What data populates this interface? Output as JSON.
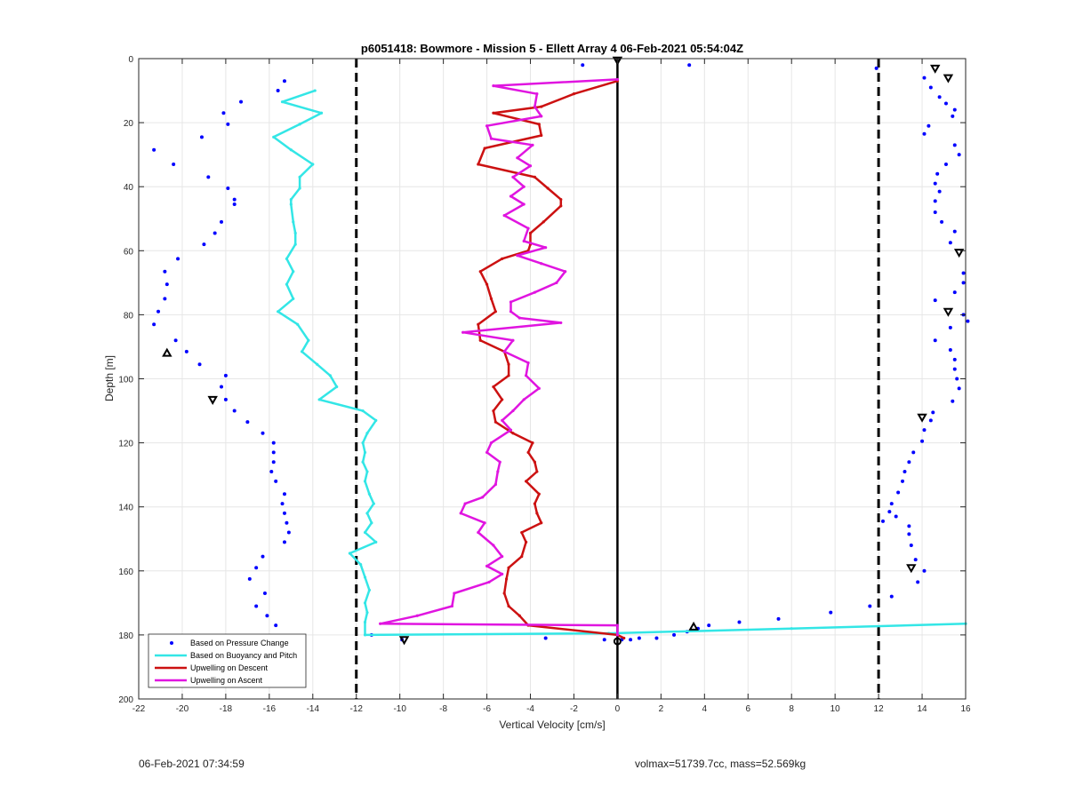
{
  "chart_data": {
    "type": "line",
    "title": "p6051418: Bowmore - Mission 5 - Ellett Array 4 06-Feb-2021 05:54:04Z",
    "xlabel": "Vertical Velocity [cm/s]",
    "ylabel": "Depth [m]",
    "xlim": [
      -22,
      16
    ],
    "ylim": [
      0,
      200
    ],
    "y_reversed": true,
    "grid": true,
    "legend_position": "bottom-left",
    "xticks": [
      -22,
      -20,
      -18,
      -16,
      -14,
      -12,
      -10,
      -8,
      -6,
      -4,
      -2,
      0,
      2,
      4,
      6,
      8,
      10,
      12,
      14,
      16
    ],
    "yticks": [
      0,
      20,
      40,
      60,
      80,
      100,
      120,
      140,
      160,
      180,
      200
    ],
    "reference_lines": [
      {
        "name": "zero",
        "x": 0,
        "style": "solid",
        "color": "#000000"
      },
      {
        "name": "lower-threshold",
        "x": -12,
        "style": "dashed",
        "color": "#000000"
      },
      {
        "name": "upper-threshold",
        "x": 12,
        "style": "dashed",
        "color": "#000000"
      }
    ],
    "series": [
      {
        "name": "Based on Pressure Change",
        "kind": "scatter",
        "color": "#0000ff",
        "points": [
          [
            -15.3,
            7
          ],
          [
            -15.6,
            10
          ],
          [
            -17.3,
            13.5
          ],
          [
            -18.1,
            17
          ],
          [
            -17.9,
            20.5
          ],
          [
            -19.1,
            24.5
          ],
          [
            -21.3,
            28.5
          ],
          [
            -20.4,
            33
          ],
          [
            -18.8,
            37
          ],
          [
            -17.9,
            40.5
          ],
          [
            -17.6,
            44
          ],
          [
            -17.6,
            45.5
          ],
          [
            -18.2,
            51
          ],
          [
            -18.5,
            54.5
          ],
          [
            -19,
            58
          ],
          [
            -20.2,
            62.5
          ],
          [
            -20.8,
            66.5
          ],
          [
            -20.7,
            70.5
          ],
          [
            -20.8,
            75
          ],
          [
            -21.1,
            79
          ],
          [
            -21.3,
            83
          ],
          [
            -20.3,
            88
          ],
          [
            -19.8,
            91.5
          ],
          [
            -19.2,
            95.5
          ],
          [
            -18,
            99
          ],
          [
            -18.2,
            102.5
          ],
          [
            -18,
            106.5
          ],
          [
            -17.6,
            110
          ],
          [
            -17,
            113.5
          ],
          [
            -16.3,
            117
          ],
          [
            -15.8,
            120
          ],
          [
            -15.8,
            123
          ],
          [
            -15.8,
            126
          ],
          [
            -15.9,
            129
          ],
          [
            -15.7,
            132
          ],
          [
            -15.3,
            136
          ],
          [
            -15.4,
            139
          ],
          [
            -15.3,
            142
          ],
          [
            -15.2,
            145
          ],
          [
            -15.1,
            148
          ],
          [
            -15.3,
            151
          ],
          [
            -16.3,
            155.5
          ],
          [
            -16.6,
            159
          ],
          [
            -16.9,
            162.5
          ],
          [
            -16.2,
            167
          ],
          [
            -16.6,
            171
          ],
          [
            -16.1,
            174
          ],
          [
            -15.7,
            177
          ],
          [
            -1.6,
            2
          ],
          [
            3.3,
            2
          ],
          [
            -11.3,
            180
          ],
          [
            -9.9,
            181.5
          ],
          [
            -3.3,
            181
          ],
          [
            -0.6,
            181.5
          ],
          [
            0.2,
            181.5
          ],
          [
            0.6,
            181.5
          ],
          [
            1,
            181
          ],
          [
            1.8,
            181
          ],
          [
            2.6,
            180
          ],
          [
            3.2,
            179
          ],
          [
            3.7,
            178
          ],
          [
            4.2,
            177
          ],
          [
            5.6,
            176
          ],
          [
            7.4,
            175
          ],
          [
            9.8,
            173
          ],
          [
            11.6,
            171
          ],
          [
            12.6,
            168
          ],
          [
            13.8,
            163.5
          ],
          [
            14.1,
            160
          ],
          [
            13.7,
            156.5
          ],
          [
            13.5,
            152
          ],
          [
            13.4,
            148.5
          ],
          [
            13.4,
            146
          ],
          [
            12.8,
            143
          ],
          [
            12.5,
            141.5
          ],
          [
            12.2,
            144.5
          ],
          [
            11.9,
            3
          ],
          [
            14.1,
            6
          ],
          [
            14.4,
            9
          ],
          [
            14.8,
            12
          ],
          [
            15.1,
            14
          ],
          [
            15.5,
            16
          ],
          [
            15.4,
            18
          ],
          [
            14.3,
            21
          ],
          [
            14.1,
            23.5
          ],
          [
            15.5,
            27
          ],
          [
            15.7,
            30
          ],
          [
            15.1,
            33
          ],
          [
            14.7,
            36
          ],
          [
            14.6,
            39
          ],
          [
            14.8,
            41.5
          ],
          [
            14.6,
            44.5
          ],
          [
            14.6,
            48
          ],
          [
            14.9,
            51
          ],
          [
            15.5,
            54
          ],
          [
            15.3,
            57.5
          ],
          [
            15.9,
            67
          ],
          [
            15.9,
            70
          ],
          [
            15.5,
            73
          ],
          [
            14.6,
            75.5
          ],
          [
            15.9,
            80
          ],
          [
            16.1,
            82
          ],
          [
            15.3,
            84
          ],
          [
            14.6,
            88
          ],
          [
            15.3,
            91
          ],
          [
            15.5,
            94
          ],
          [
            15.5,
            97
          ],
          [
            15.6,
            100
          ],
          [
            15.7,
            103
          ],
          [
            15.4,
            107
          ],
          [
            14.5,
            110.5
          ],
          [
            14.4,
            113
          ],
          [
            14.1,
            116
          ],
          [
            14,
            119.5
          ],
          [
            13.6,
            123
          ],
          [
            13.4,
            126
          ],
          [
            13.2,
            129
          ],
          [
            13.1,
            132
          ],
          [
            12.9,
            135.5
          ],
          [
            12.6,
            139
          ]
        ]
      },
      {
        "name": "Based on Buoyancy and Pitch",
        "kind": "line",
        "color": "#33e6e6",
        "points": [
          [
            -13.9,
            10
          ],
          [
            -15.4,
            13.5
          ],
          [
            -13.6,
            17
          ],
          [
            -14.6,
            20.5
          ],
          [
            -15.8,
            24.5
          ],
          [
            -15,
            28.5
          ],
          [
            -14,
            33
          ],
          [
            -14.6,
            37
          ],
          [
            -14.6,
            40.5
          ],
          [
            -15,
            44
          ],
          [
            -15,
            45.5
          ],
          [
            -14.9,
            51
          ],
          [
            -14.8,
            54.5
          ],
          [
            -14.8,
            58
          ],
          [
            -15.2,
            62.5
          ],
          [
            -14.9,
            66.5
          ],
          [
            -15.2,
            70.5
          ],
          [
            -14.9,
            75
          ],
          [
            -15.6,
            79
          ],
          [
            -14.7,
            83
          ],
          [
            -14.2,
            88
          ],
          [
            -14.5,
            91.5
          ],
          [
            -13.8,
            95.5
          ],
          [
            -13.2,
            99
          ],
          [
            -12.9,
            102.5
          ],
          [
            -13.7,
            106.5
          ],
          [
            -11.7,
            110
          ],
          [
            -11.1,
            113
          ],
          [
            -11.5,
            117
          ],
          [
            -11.7,
            120
          ],
          [
            -11.6,
            123
          ],
          [
            -11.7,
            126
          ],
          [
            -11.5,
            129
          ],
          [
            -11.6,
            132
          ],
          [
            -11.4,
            136
          ],
          [
            -11.2,
            139
          ],
          [
            -11.5,
            142
          ],
          [
            -11.3,
            145
          ],
          [
            -11.6,
            148
          ],
          [
            -11.1,
            151
          ],
          [
            -12.3,
            154.5
          ],
          [
            -11.8,
            158
          ],
          [
            -11.6,
            162
          ],
          [
            -11.4,
            166
          ],
          [
            -11.6,
            170
          ],
          [
            -11.5,
            173
          ],
          [
            -11.6,
            176
          ],
          [
            -11.6,
            180
          ],
          [
            -0.4,
            179.5
          ],
          [
            8,
            178
          ],
          [
            16,
            176.5
          ]
        ]
      },
      {
        "name": "Upwelling on Descent",
        "kind": "line",
        "color": "#cc1111",
        "points": [
          [
            0,
            7
          ],
          [
            -2,
            11
          ],
          [
            -3.5,
            15
          ],
          [
            -5.7,
            17
          ],
          [
            -3.6,
            20.5
          ],
          [
            -3.5,
            24
          ],
          [
            -6.1,
            28
          ],
          [
            -6.4,
            33
          ],
          [
            -3.8,
            37
          ],
          [
            -3.2,
            40.5
          ],
          [
            -2.6,
            44
          ],
          [
            -2.6,
            46
          ],
          [
            -3.4,
            51
          ],
          [
            -4,
            54.5
          ],
          [
            -4,
            58
          ],
          [
            -4.1,
            60
          ],
          [
            -5.3,
            62.5
          ],
          [
            -6.3,
            66.5
          ],
          [
            -6,
            70.5
          ],
          [
            -5.8,
            75
          ],
          [
            -5.6,
            79
          ],
          [
            -6.4,
            83
          ],
          [
            -6.3,
            88
          ],
          [
            -5.2,
            91.5
          ],
          [
            -5,
            95.5
          ],
          [
            -5,
            99
          ],
          [
            -5.7,
            102.5
          ],
          [
            -5.3,
            106.5
          ],
          [
            -5.7,
            110
          ],
          [
            -5.6,
            113.5
          ],
          [
            -4.8,
            117
          ],
          [
            -3.9,
            120
          ],
          [
            -4.1,
            123
          ],
          [
            -3.8,
            126
          ],
          [
            -3.7,
            129
          ],
          [
            -4.2,
            132
          ],
          [
            -3.6,
            136
          ],
          [
            -3.8,
            139
          ],
          [
            -3.7,
            142
          ],
          [
            -3.5,
            145
          ],
          [
            -4.4,
            148
          ],
          [
            -4.2,
            151
          ],
          [
            -4.4,
            155.5
          ],
          [
            -5,
            159
          ],
          [
            -5.1,
            162.5
          ],
          [
            -5.2,
            167
          ],
          [
            -5,
            171
          ],
          [
            -4.5,
            174
          ],
          [
            -4.1,
            177
          ],
          [
            0,
            180
          ],
          [
            0.3,
            181
          ]
        ]
      },
      {
        "name": "Upwelling on Ascent",
        "kind": "line",
        "color": "#e015e0",
        "points": [
          [
            0,
            6.5
          ],
          [
            -5.7,
            8.5
          ],
          [
            -3.7,
            11
          ],
          [
            -3.8,
            15
          ],
          [
            -3.5,
            18
          ],
          [
            -6,
            21
          ],
          [
            -5.8,
            25
          ],
          [
            -3.9,
            27
          ],
          [
            -4.6,
            31
          ],
          [
            -4,
            33.5
          ],
          [
            -4.8,
            37
          ],
          [
            -4.3,
            40
          ],
          [
            -4.9,
            43
          ],
          [
            -4.3,
            45.5
          ],
          [
            -5.2,
            49
          ],
          [
            -4.1,
            53
          ],
          [
            -4.3,
            57
          ],
          [
            -3.3,
            59
          ],
          [
            -4.6,
            61.5
          ],
          [
            -3.5,
            64
          ],
          [
            -2.4,
            66.5
          ],
          [
            -2.8,
            70
          ],
          [
            -3.8,
            73
          ],
          [
            -4.9,
            76
          ],
          [
            -4.9,
            79
          ],
          [
            -4.5,
            81
          ],
          [
            -2.6,
            82.5
          ],
          [
            -7.1,
            85.5
          ],
          [
            -4.8,
            88
          ],
          [
            -5.2,
            91.5
          ],
          [
            -4.1,
            95
          ],
          [
            -4.2,
            99
          ],
          [
            -3.6,
            103
          ],
          [
            -4.3,
            106.5
          ],
          [
            -4.8,
            110
          ],
          [
            -5.3,
            113
          ],
          [
            -4.9,
            116
          ],
          [
            -5.8,
            120
          ],
          [
            -6,
            123
          ],
          [
            -5.4,
            126
          ],
          [
            -5.5,
            129
          ],
          [
            -5.6,
            133
          ],
          [
            -6.2,
            137
          ],
          [
            -7,
            139
          ],
          [
            -7.2,
            142
          ],
          [
            -6.1,
            145
          ],
          [
            -6.4,
            148
          ],
          [
            -5.7,
            152
          ],
          [
            -5.3,
            155.5
          ],
          [
            -6,
            158.5
          ],
          [
            -5.3,
            161
          ],
          [
            -5.9,
            163.5
          ],
          [
            -7.5,
            167
          ],
          [
            -7.6,
            171
          ],
          [
            -9.2,
            174
          ],
          [
            -10.9,
            176.5
          ],
          [
            0,
            177
          ],
          [
            0,
            180
          ]
        ]
      },
      {
        "name": "markers",
        "kind": "marker",
        "color": "#000000",
        "points": [
          [
            0,
            0.5,
            "down"
          ],
          [
            14.6,
            3,
            "down"
          ],
          [
            15.2,
            6,
            "down"
          ],
          [
            15.7,
            60.5,
            "down"
          ],
          [
            15.2,
            79,
            "down"
          ],
          [
            14,
            112,
            "down"
          ],
          [
            13.5,
            159,
            "down"
          ],
          [
            3.5,
            177.5,
            "up"
          ],
          [
            -20.7,
            92,
            "up"
          ],
          [
            -18.6,
            106.5,
            "down"
          ],
          [
            -9.8,
            181.5,
            "down"
          ],
          [
            0,
            182,
            "circle"
          ]
        ]
      }
    ],
    "legend": [
      "Based on Pressure Change",
      "Based on Buoyancy and Pitch",
      "Upwelling on Descent",
      "Upwelling on Ascent"
    ]
  },
  "footer": {
    "timestamp": "06-Feb-2021 07:34:59",
    "summary": "volmax=51739.7cc, mass=52.569kg"
  }
}
